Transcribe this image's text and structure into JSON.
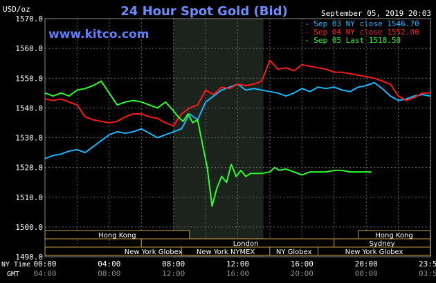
{
  "header": {
    "unit": "USD/oz",
    "title": "24 Hour Spot Gold (Bid)",
    "website": "www.kitco.com",
    "timestamp": "September 05, 2019 20:03"
  },
  "legend": [
    {
      "label": "- Sep 03 NY close 1546.70",
      "color": "#19b7ff"
    },
    {
      "label": "- Sep 04 NY close 1552.00",
      "color": "#ff1a1a"
    },
    {
      "label": "- Sep 05 Last 1518.50",
      "color": "#2cff2c"
    }
  ],
  "sessions": [
    {
      "name": "Hong Kong",
      "start": 0,
      "end": 9
    },
    {
      "name": "London",
      "start": 6,
      "end": 19
    },
    {
      "name": "New York Globex",
      "start": 0,
      "end": 13.5
    },
    {
      "name": "New York NYMEX",
      "start": 8.5,
      "end": 14
    },
    {
      "name": "NY Globex",
      "start": 14,
      "end": 17
    },
    {
      "name": "New York Globex",
      "start": 17,
      "end": 24
    },
    {
      "name": "Sydney",
      "start": 18,
      "end": 24
    },
    {
      "name": "Hong Kong",
      "start": 19.5,
      "end": 24
    }
  ],
  "time_axes": {
    "ny_label": "NY Time",
    "gmt_label": "GMT",
    "ny_ticks": [
      "00:00",
      "04:00",
      "08:00",
      "12:00",
      "16:00",
      "20:00",
      "23:59"
    ],
    "gmt_ticks": [
      "04:00",
      "08:00",
      "12:00",
      "16:00",
      "20:00",
      "00:00",
      "03:59"
    ]
  },
  "chart_data": {
    "type": "line",
    "title": "24 Hour Spot Gold (Bid)",
    "ylabel": "USD/oz",
    "xlabel": "NY Time",
    "x_unit": "hours (NY time)",
    "xlim": [
      0,
      24
    ],
    "ylim": [
      1490,
      1570
    ],
    "yticks": [
      "1490.0",
      "1500.0",
      "1510.0",
      "1520.0",
      "1530.0",
      "1540.0",
      "1550.0",
      "1560.0",
      "1570.0"
    ],
    "shaded_region": [
      8,
      13.6
    ],
    "grid": true,
    "series": [
      {
        "name": "Sep 03 NY close 1546.70",
        "color": "#19b7ff",
        "x": [
          0,
          0.5,
          1,
          1.5,
          2,
          2.5,
          3,
          3.5,
          4,
          4.5,
          5,
          5.5,
          6,
          6.5,
          7,
          7.5,
          8,
          8.5,
          9,
          9.5,
          10,
          10.5,
          11,
          11.5,
          12,
          12.5,
          13,
          13.5,
          14,
          14.5,
          15,
          15.5,
          16,
          16.5,
          17,
          17.5,
          18,
          18.5,
          19,
          19.5,
          20,
          20.5,
          21,
          21.5,
          22,
          22.5,
          23,
          23.5,
          23.98
        ],
        "y": [
          1523,
          1524,
          1524.5,
          1525.5,
          1526,
          1525,
          1527,
          1529,
          1531,
          1532,
          1531.5,
          1532,
          1533,
          1531.5,
          1530,
          1531,
          1532,
          1533,
          1538,
          1536,
          1542,
          1544,
          1546,
          1547,
          1548,
          1546,
          1546.5,
          1546,
          1545.5,
          1545,
          1544,
          1545,
          1546.5,
          1545.5,
          1547,
          1546.5,
          1547,
          1546,
          1545.5,
          1547,
          1547.5,
          1548.5,
          1546.5,
          1544,
          1542.5,
          1543,
          1544,
          1544.5,
          1544
        ]
      },
      {
        "name": "Sep 04 NY close 1552.00",
        "color": "#ff1a1a",
        "x": [
          0,
          0.5,
          1,
          1.5,
          2,
          2.5,
          3,
          3.5,
          4,
          4.5,
          5,
          5.5,
          6,
          6.5,
          7,
          7.5,
          8,
          8.5,
          9,
          9.5,
          10,
          10.5,
          11,
          11.5,
          12,
          12.5,
          13,
          13.5,
          14,
          14.5,
          15,
          15.5,
          16,
          16.5,
          17,
          17.5,
          18,
          18.5,
          19,
          19.5,
          20,
          20.5,
          21,
          21.5,
          22,
          22.5,
          23,
          23.5,
          23.98
        ],
        "y": [
          1543,
          1542.5,
          1543,
          1542,
          1541,
          1537,
          1536,
          1535.5,
          1535,
          1535.5,
          1537,
          1538,
          1538,
          1537,
          1536.5,
          1535,
          1534,
          1538,
          1540,
          1541,
          1546,
          1544.5,
          1547,
          1546.5,
          1548,
          1547.5,
          1548,
          1549,
          1556,
          1553,
          1553.5,
          1552.5,
          1554.5,
          1554,
          1553.5,
          1553,
          1552,
          1552,
          1551.5,
          1551,
          1550.5,
          1550,
          1549,
          1548,
          1544,
          1542.5,
          1543.5,
          1545,
          1545
        ]
      },
      {
        "name": "Sep 05 Last 1518.50",
        "color": "#2cff2c",
        "x": [
          0,
          0.5,
          1,
          1.5,
          2,
          2.5,
          3,
          3.5,
          4,
          4.5,
          5,
          5.5,
          6,
          6.5,
          7,
          7.5,
          8,
          8.3,
          8.6,
          8.9,
          9.2,
          9.5,
          9.8,
          10.1,
          10.4,
          10.7,
          11,
          11.3,
          11.6,
          11.9,
          12.2,
          12.5,
          12.8,
          13,
          13.5,
          14,
          14.3,
          14.6,
          15,
          15.5,
          16,
          16.5,
          17,
          17.5,
          18,
          18.5,
          19,
          19.5,
          20,
          20.3
        ],
        "y": [
          1545,
          1544,
          1545,
          1544,
          1546,
          1546.5,
          1547.5,
          1549,
          1545,
          1541,
          1542,
          1542.5,
          1542,
          1541,
          1540,
          1542,
          1539,
          1537,
          1535.5,
          1538,
          1535,
          1536,
          1528,
          1520,
          1507,
          1513,
          1517,
          1515,
          1521,
          1517,
          1519,
          1517,
          1518,
          1518,
          1518,
          1518.5,
          1520,
          1519,
          1519.5,
          1518.5,
          1517.5,
          1518.5,
          1518.5,
          1518.5,
          1519,
          1519,
          1518.5,
          1518.5,
          1518.5,
          1518.5
        ]
      }
    ]
  }
}
